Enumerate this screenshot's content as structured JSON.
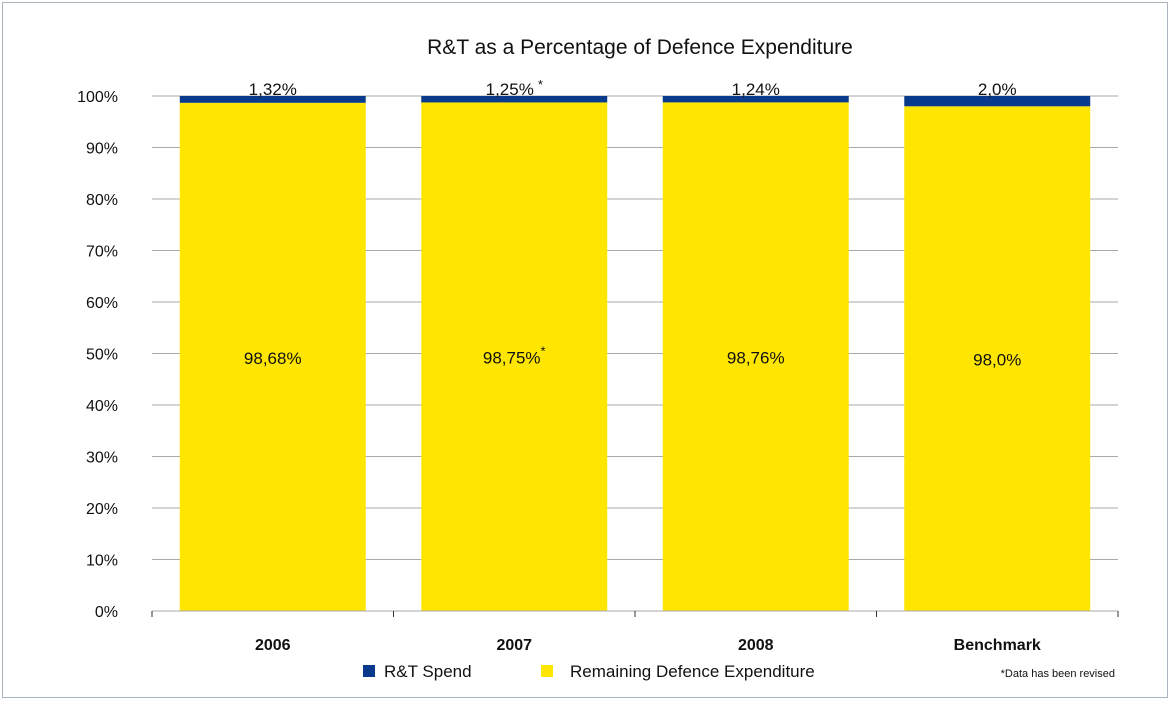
{
  "chart_data": {
    "type": "bar",
    "stacked": true,
    "title": "R&T as a Percentage of Defence Expenditure",
    "xlabel": "",
    "ylabel": "",
    "ylim": [
      0,
      100
    ],
    "yticks": [
      "0%",
      "10%",
      "20%",
      "30%",
      "40%",
      "50%",
      "60%",
      "70%",
      "80%",
      "90%",
      "100%"
    ],
    "grid": true,
    "categories": [
      "2006",
      "2007",
      "2008",
      "Benchmark"
    ],
    "series": [
      {
        "name": "Remaining Defence Expenditure",
        "color": "#ffe600",
        "values": [
          98.68,
          98.75,
          98.76,
          98.0
        ],
        "labels": [
          "98,68%",
          "98,75%",
          "98,76%",
          "98,0%"
        ],
        "asterisk": [
          false,
          true,
          false,
          false
        ]
      },
      {
        "name": "R&T Spend",
        "color": "#0a3a8c",
        "values": [
          1.32,
          1.25,
          1.24,
          2.0
        ],
        "labels": [
          "1,32%",
          "1,25%",
          "1,24%",
          "2,0%"
        ],
        "asterisk": [
          false,
          true,
          false,
          false
        ]
      }
    ],
    "legend": {
      "placement": "bottom",
      "items": [
        {
          "label": "R&T Spend",
          "color": "#0a3a8c"
        },
        {
          "label": "Remaining Defence Expenditure",
          "color": "#ffe600"
        }
      ]
    },
    "footnote": "*Data has been revised"
  }
}
